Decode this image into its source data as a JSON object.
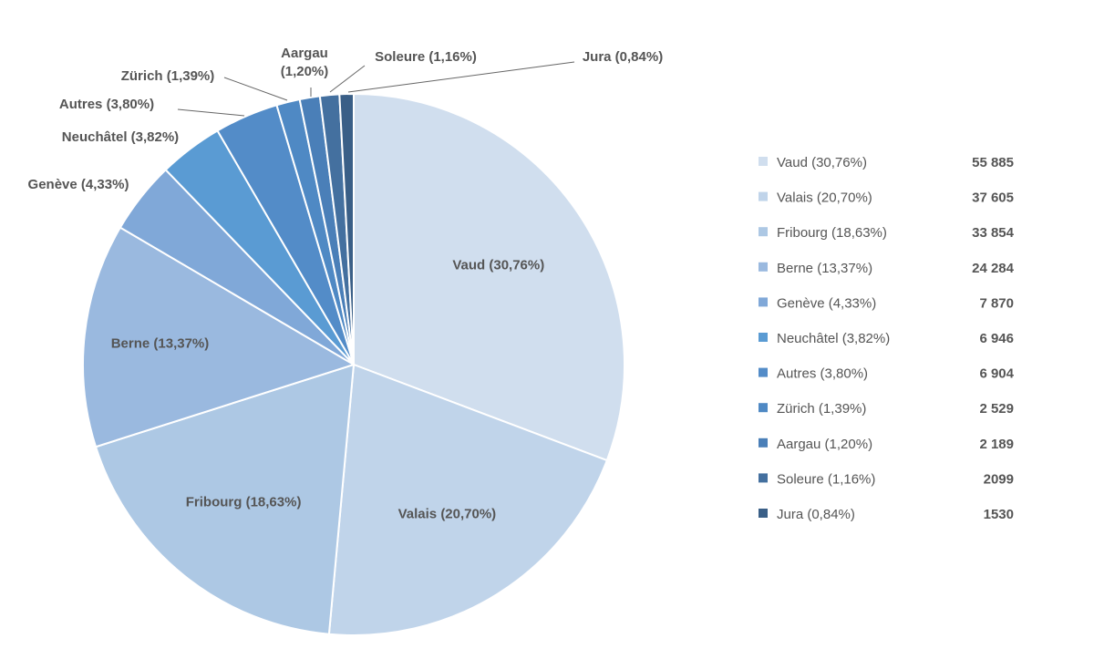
{
  "chart_data": {
    "type": "pie",
    "title": "",
    "slices": [
      {
        "label": "Vaud (30,76%)",
        "value": 55885,
        "display_value": "55 885",
        "color": "#d0deee"
      },
      {
        "label": "Valais (20,70%)",
        "value": 37605,
        "display_value": "37 605",
        "color": "#c0d4ea"
      },
      {
        "label": "Fribourg (18,63%)",
        "value": 33854,
        "display_value": "33 854",
        "color": "#adc8e4"
      },
      {
        "label": "Berne (13,37%)",
        "value": 24284,
        "display_value": "24 284",
        "color": "#9ab9df"
      },
      {
        "label": "Genève (4,33%)",
        "value": 7870,
        "display_value": "7 870",
        "color": "#80a8d8"
      },
      {
        "label": "Neuchâtel (3,82%)",
        "value": 6946,
        "display_value": "6 946",
        "color": "#5a9bd3"
      },
      {
        "label": "Autres (3,80%)",
        "value": 6904,
        "display_value": "6 904",
        "color": "#538cc8"
      },
      {
        "label": "Zürich (1,39%)",
        "value": 2529,
        "display_value": "2 529",
        "color": "#4f89c4"
      },
      {
        "label": "Aargau (1,20%)",
        "value": 2189,
        "display_value": "2 189",
        "color": "#4a7fb8"
      },
      {
        "label": "Soleure (1,16%)",
        "value": 2099,
        "display_value": "2099",
        "color": "#44709f"
      },
      {
        "label": "Jura (0,84%)",
        "value": 1530,
        "display_value": "1530",
        "color": "#3a5f87"
      }
    ],
    "legend_position": "right",
    "label_color": "#555555"
  }
}
